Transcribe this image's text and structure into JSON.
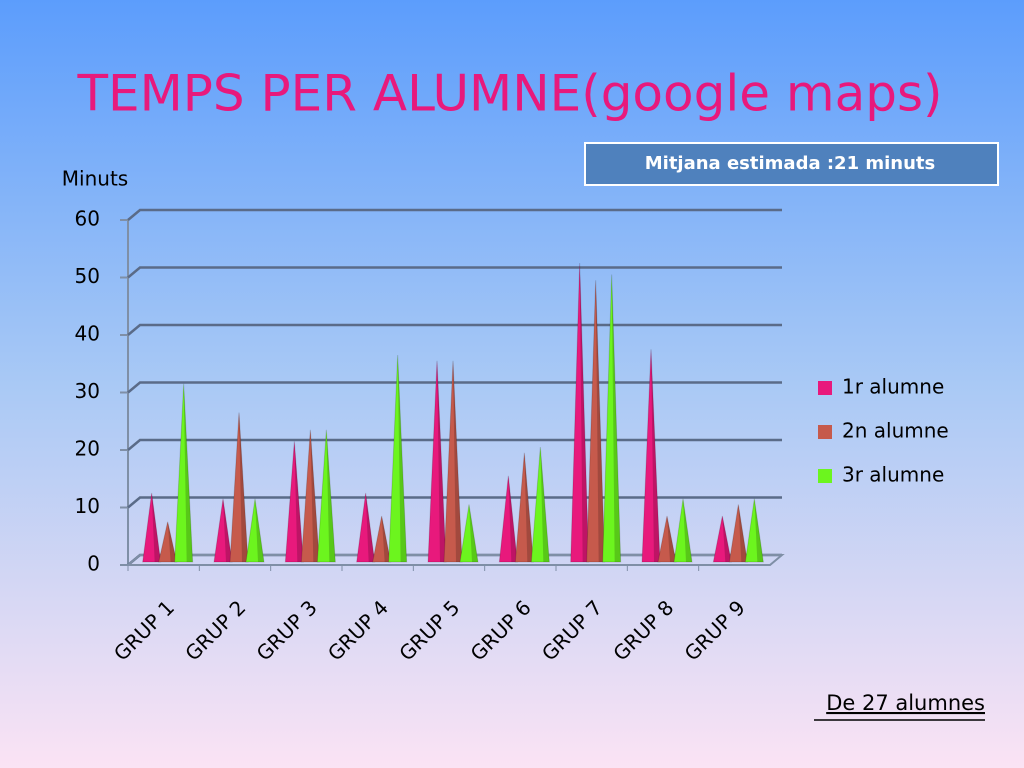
{
  "chart_data": {
    "type": "cone",
    "title": "TEMPS PER ALUMNE(google maps)",
    "annotation": "Mitjana estimada :21 minuts",
    "footnote": "De 27 alumnes",
    "y_label": "Minuts",
    "categories": [
      "GRUP 1",
      "GRUP 2",
      "GRUP 3",
      "GRUP 4",
      "GRUP 5",
      "GRUP 6",
      "GRUP 7",
      "GRUP 8",
      "GRUP 9"
    ],
    "series": [
      {
        "name": "1r alumne",
        "color": "#e8197c",
        "values": [
          12,
          11,
          21,
          12,
          35,
          15,
          52,
          37,
          8
        ]
      },
      {
        "name": "2n alumne",
        "color": "#c65a4c",
        "values": [
          7,
          26,
          23,
          8,
          35,
          19,
          49,
          8,
          10
        ]
      },
      {
        "name": "3r alumne",
        "color": "#6cf51e",
        "values": [
          31,
          11,
          23,
          36,
          10,
          20,
          50,
          11,
          11
        ]
      }
    ],
    "ylim": [
      0,
      60
    ],
    "yticks": [
      0,
      10,
      20,
      30,
      40,
      50,
      60
    ],
    "grid": true,
    "legend": "right"
  }
}
